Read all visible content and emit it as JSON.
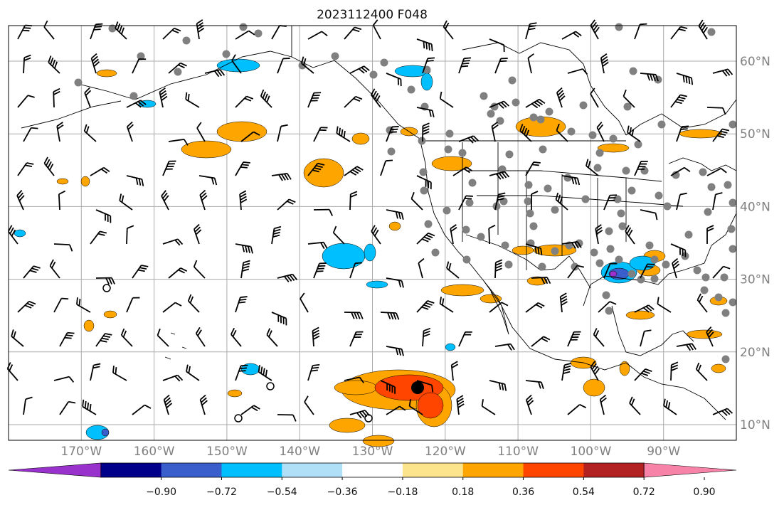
{
  "title": "2023112400 F048",
  "map": {
    "lat_labels": [
      "60°N",
      "50°N",
      "40°N",
      "30°N",
      "20°N",
      "10°N"
    ],
    "lat_values": [
      60,
      50,
      40,
      30,
      20,
      10
    ],
    "lon_labels": [
      "170°W",
      "160°W",
      "150°W",
      "140°W",
      "130°W",
      "120°W",
      "110°W",
      "100°W",
      "90°W"
    ],
    "lon_values": [
      -170,
      -160,
      -150,
      -140,
      -130,
      -120,
      -110,
      -100,
      -90
    ],
    "extent": {
      "lon_min": -180,
      "lon_max": -80,
      "lat_min": 8,
      "lat_max": 65
    },
    "grid": true,
    "barb_color": "#000000",
    "station_color": "#808080"
  },
  "colorbar": {
    "ticks": [
      "−0.90",
      "−0.72",
      "−0.54",
      "−0.36",
      "−0.18",
      "0.18",
      "0.36",
      "0.54",
      "0.72",
      "0.90"
    ],
    "colors": [
      "#9932cc",
      "#00008b",
      "#3a5fcd",
      "#00bfff",
      "#b0e0f8",
      "#ffffff",
      "#fce48c",
      "#ffa500",
      "#ff4500",
      "#b22222",
      "#f784a8"
    ],
    "extend": "both"
  },
  "fill_colors": {
    "neg_light": "#00bfff",
    "neg_dark": "#3a5fcd",
    "neg_purple": "#9932cc",
    "pos_orange": "#ffa500",
    "pos_red": "#ff4500"
  }
}
